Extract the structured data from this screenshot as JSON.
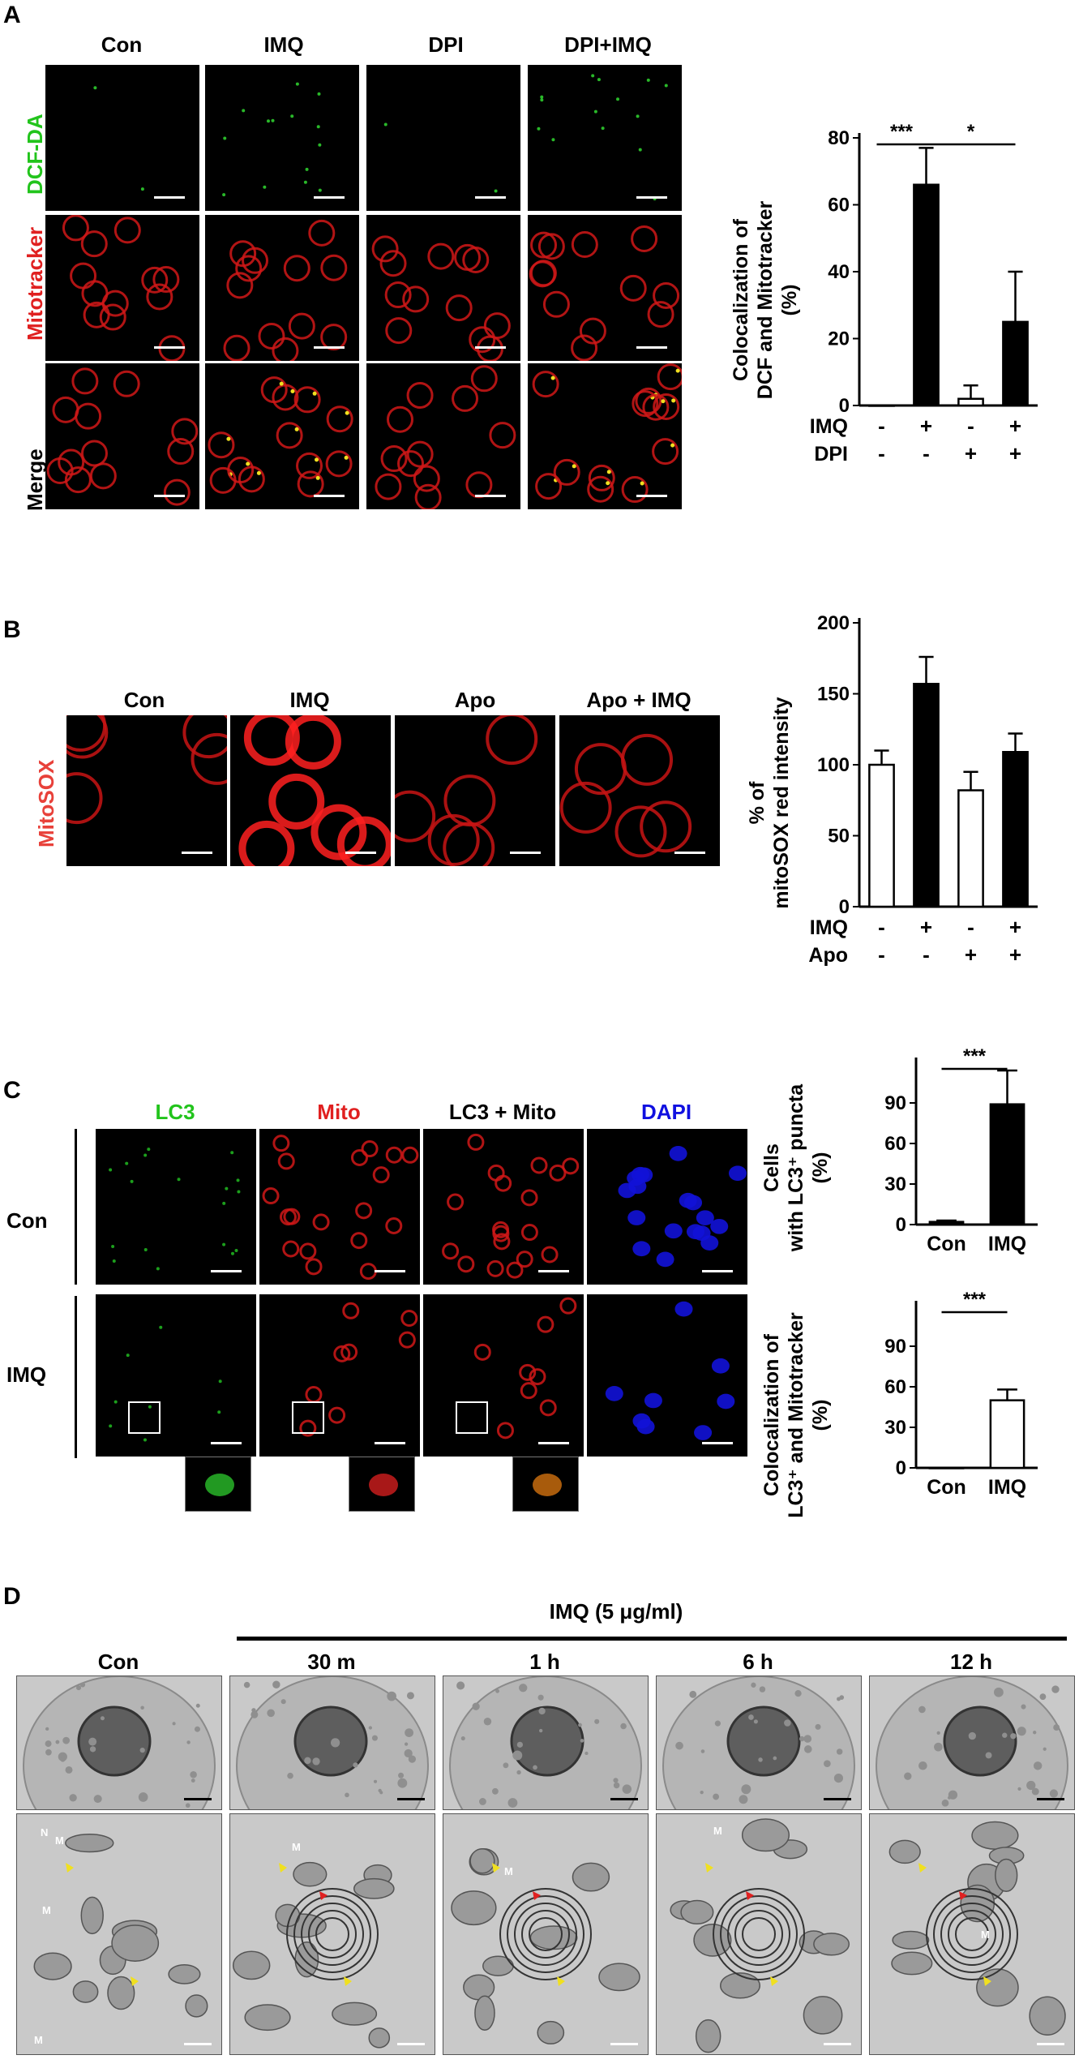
{
  "panels": {
    "A": {
      "letter": "A",
      "columns": [
        "Con",
        "IMQ",
        "DPI",
        "DPI+IMQ"
      ],
      "rows": [
        {
          "label": "DCF-DA",
          "color": "#22c41c"
        },
        {
          "label": "Mitotracker",
          "color": "#e02020"
        },
        {
          "label": "Merge",
          "color": "#000000"
        }
      ]
    },
    "B": {
      "letter": "B",
      "columns": [
        "Con",
        "IMQ",
        "Apo",
        "Apo + IMQ"
      ],
      "row_label": "MitoSOX",
      "row_color": "#e8413a"
    },
    "C": {
      "letter": "C",
      "columns": [
        {
          "label": "LC3",
          "color": "#22c41c"
        },
        {
          "label": "Mito",
          "color": "#e02020"
        },
        {
          "label": "LC3 + Mito",
          "color": "#000000"
        },
        {
          "label": "DAPI",
          "color": "#1010e0"
        }
      ],
      "rows": [
        "Con",
        "IMQ"
      ]
    },
    "D": {
      "letter": "D",
      "treatment": "IMQ (5 μg/ml)",
      "columns": [
        "Con",
        "30 m",
        "1 h",
        "6 h",
        "12 h"
      ],
      "marker_labels": [
        "N",
        "M"
      ]
    }
  },
  "chart_data": [
    {
      "id": "A",
      "type": "bar",
      "categories": [
        "1",
        "2",
        "3",
        "4"
      ],
      "values": [
        0,
        66,
        2,
        25
      ],
      "errors": [
        0,
        11,
        4,
        15
      ],
      "fills": [
        "black",
        "black",
        "white",
        "black"
      ],
      "ylim": [
        0,
        80
      ],
      "yticks": [
        "0",
        "20",
        "40",
        "60",
        "80"
      ],
      "ylabel_lines": [
        "Colocalization of",
        "DCF and Mitotracker",
        "(%)"
      ],
      "treatment_rows": [
        {
          "name": "IMQ",
          "signs": [
            "-",
            "+",
            "-",
            "+"
          ]
        },
        {
          "name": "DPI",
          "signs": [
            "-",
            "-",
            "+",
            "+"
          ]
        }
      ],
      "significance": [
        {
          "from": 0,
          "to": 1,
          "label": "***"
        },
        {
          "from": 1,
          "to": 3,
          "label": "*"
        }
      ]
    },
    {
      "id": "B",
      "type": "bar",
      "categories": [
        "1",
        "2",
        "3",
        "4"
      ],
      "values": [
        100,
        157,
        82,
        109
      ],
      "errors": [
        10,
        19,
        13,
        13
      ],
      "fills": [
        "white",
        "black",
        "white",
        "black"
      ],
      "ylim": [
        0,
        200
      ],
      "yticks": [
        "0",
        "50",
        "100",
        "150",
        "200"
      ],
      "ylabel_lines": [
        "% of",
        "mitoSOX red intensity"
      ],
      "treatment_rows": [
        {
          "name": "IMQ",
          "signs": [
            "-",
            "+",
            "-",
            "+"
          ]
        },
        {
          "name": "Apo",
          "signs": [
            "-",
            "-",
            "+",
            "+"
          ]
        }
      ],
      "significance": []
    },
    {
      "id": "C1",
      "type": "bar",
      "categories": [
        "Con",
        "IMQ"
      ],
      "values": [
        2,
        89
      ],
      "errors": [
        1,
        25
      ],
      "fills": [
        "black",
        "black"
      ],
      "ylim": [
        0,
        120
      ],
      "yticks": [
        "0",
        "30",
        "60",
        "90"
      ],
      "ylabel_lines": [
        "Cells",
        "with LC3⁺ puncta",
        "(%)"
      ],
      "significance": [
        {
          "from": 0,
          "to": 1,
          "label": "***"
        }
      ]
    },
    {
      "id": "C2",
      "type": "bar",
      "categories": [
        "Con",
        "IMQ"
      ],
      "values": [
        0,
        50
      ],
      "errors": [
        0,
        8
      ],
      "fills": [
        "white",
        "white"
      ],
      "ylim": [
        0,
        120
      ],
      "yticks": [
        "0",
        "30",
        "60",
        "90"
      ],
      "ylabel_lines": [
        "Colocalization of",
        "LC3⁺ and Mitotracker",
        "(%)"
      ],
      "significance": [
        {
          "from": 0,
          "to": 1,
          "label": "***"
        }
      ]
    }
  ]
}
